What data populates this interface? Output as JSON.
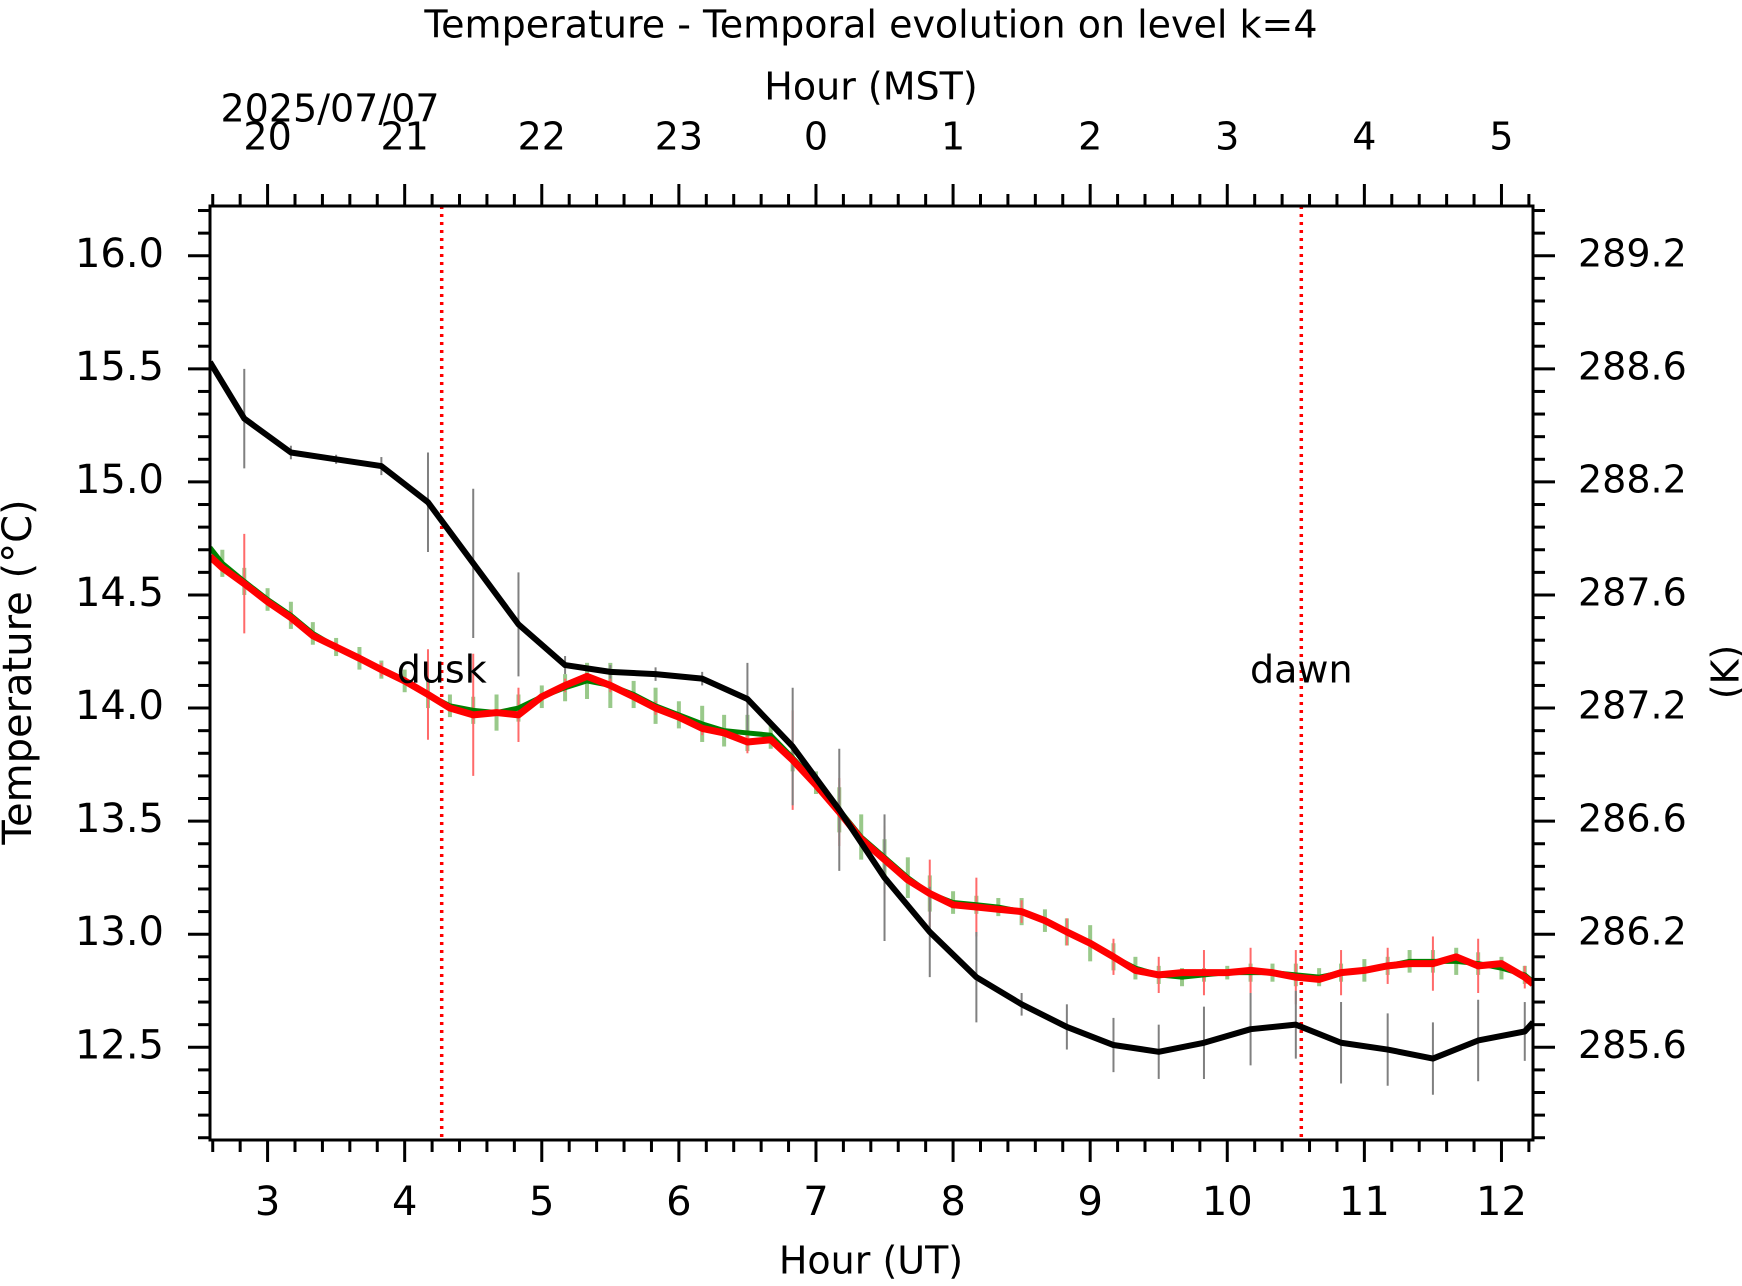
{
  "chart_data": {
    "type": "line",
    "title": "Temperature - Temporal evolution on level k=4",
    "xlabel": "Hour (UT)",
    "x2label": "Hour (MST)",
    "ylabel": "Temperature (°C)",
    "y2label": "(K)",
    "date_label": "2025/07/07",
    "xlim": [
      2.58,
      12.23
    ],
    "xticks": [
      3,
      4,
      5,
      6,
      7,
      8,
      9,
      10,
      11,
      12
    ],
    "xminorticks": [
      2.6,
      2.8,
      3.2,
      3.4,
      3.6,
      3.8,
      4.2,
      4.4,
      4.6,
      4.8,
      5.2,
      5.4,
      5.6,
      5.8,
      6.2,
      6.4,
      6.6,
      6.8,
      7.2,
      7.4,
      7.6,
      7.8,
      8.2,
      8.4,
      8.6,
      8.8,
      9.2,
      9.4,
      9.6,
      9.8,
      10.2,
      10.4,
      10.6,
      10.8,
      11.2,
      11.4,
      11.6,
      11.8,
      12.2
    ],
    "x2lim": [
      19.58,
      29.23
    ],
    "x2ticks": [
      20,
      21,
      22,
      23,
      {
        "value": 24,
        "label": "0"
      },
      {
        "value": 25,
        "label": "1"
      },
      {
        "value": 26,
        "label": "2"
      },
      {
        "value": 27,
        "label": "3"
      },
      {
        "value": 28,
        "label": "4"
      },
      {
        "value": 29,
        "label": "5"
      }
    ],
    "ylim": [
      12.09,
      16.22
    ],
    "yticks": [
      12.5,
      {
        "value": 13,
        "label": "13.0"
      },
      13.5,
      {
        "value": 14,
        "label": "14.0"
      },
      14.5,
      {
        "value": 15,
        "label": "15.0"
      },
      15.5,
      {
        "value": 16,
        "label": "16.0"
      }
    ],
    "yminorticks": [
      12.1,
      12.2,
      12.3,
      12.4,
      12.6,
      12.7,
      12.8,
      12.9,
      13.1,
      13.2,
      13.3,
      13.4,
      13.6,
      13.7,
      13.8,
      13.9,
      14.1,
      14.2,
      14.3,
      14.4,
      14.6,
      14.7,
      14.8,
      14.9,
      15.1,
      15.2,
      15.3,
      15.4,
      15.6,
      15.7,
      15.8,
      15.9,
      16.1,
      16.2
    ],
    "y2lim": [
      285.24,
      289.37
    ],
    "y2ticks": [
      {
        "value": 285.65,
        "label": "285.6"
      },
      {
        "value": 286.15,
        "label": "286.2"
      },
      {
        "value": 286.65,
        "label": "286.6"
      },
      {
        "value": 287.15,
        "label": "287.2"
      },
      {
        "value": 287.65,
        "label": "287.6"
      },
      {
        "value": 288.15,
        "label": "288.2"
      },
      {
        "value": 288.65,
        "label": "288.6"
      },
      {
        "value": 289.15,
        "label": "289.2"
      }
    ],
    "annotations": [
      {
        "text": "dusk",
        "x": 4.27,
        "y": 14.16
      },
      {
        "text": "dawn",
        "x": 10.54,
        "y": 14.16
      }
    ],
    "annotation_color": "#ff0000",
    "x": [
      2.58,
      2.67,
      2.83,
      3.0,
      3.17,
      3.33,
      3.5,
      3.67,
      3.83,
      4.0,
      4.17,
      4.33,
      4.5,
      4.67,
      4.83,
      5.0,
      5.17,
      5.33,
      5.5,
      5.67,
      5.83,
      6.0,
      6.17,
      6.33,
      6.5,
      6.67,
      6.83,
      7.0,
      7.17,
      7.33,
      7.5,
      7.67,
      7.83,
      8.0,
      8.17,
      8.33,
      8.5,
      8.67,
      8.83,
      9.0,
      9.17,
      9.33,
      9.5,
      9.67,
      9.83,
      10.0,
      10.17,
      10.33,
      10.5,
      10.67,
      10.83,
      11.0,
      11.17,
      11.33,
      11.5,
      11.67,
      11.83,
      12.0,
      12.17,
      12.23
    ],
    "series": [
      {
        "color": "#008000",
        "error_color": "#99c98a",
        "width": 5,
        "values": [
          14.71,
          14.64,
          14.56,
          14.48,
          14.41,
          14.33,
          14.27,
          14.22,
          14.17,
          14.12,
          14.06,
          14.01,
          13.99,
          13.98,
          14.0,
          14.05,
          14.09,
          14.12,
          14.1,
          14.06,
          14.01,
          13.97,
          13.93,
          13.9,
          13.89,
          13.88,
          13.78,
          13.67,
          13.55,
          13.43,
          13.34,
          13.25,
          13.18,
          13.14,
          13.13,
          13.12,
          13.1,
          13.06,
          13.01,
          12.96,
          12.9,
          12.85,
          12.82,
          12.81,
          12.82,
          12.83,
          12.83,
          12.83,
          12.82,
          12.81,
          12.83,
          12.84,
          12.86,
          12.88,
          12.88,
          12.88,
          12.87,
          12.85,
          12.82,
          12.79
        ],
        "errors": [
          null,
          0.06,
          0.06,
          0.05,
          0.06,
          0.05,
          0.04,
          0.05,
          0.04,
          0.05,
          0.06,
          0.05,
          0.06,
          0.08,
          0.06,
          0.05,
          0.06,
          0.08,
          0.1,
          0.06,
          0.08,
          0.06,
          0.08,
          0.07,
          0.08,
          0.06,
          0.06,
          0.05,
          0.1,
          0.1,
          0.08,
          0.09,
          0.08,
          0.05,
          0.04,
          0.04,
          0.06,
          0.05,
          0.06,
          0.08,
          0.06,
          0.05,
          0.04,
          0.04,
          0.03,
          0.03,
          0.04,
          0.04,
          0.05,
          0.04,
          0.04,
          0.05,
          0.04,
          0.05,
          0.05,
          0.06,
          0.05,
          0.05,
          0.04,
          null
        ]
      },
      {
        "color": "#ff0000",
        "error_color": "#ff6a6a",
        "width": 7,
        "values": [
          14.67,
          14.62,
          14.55,
          14.47,
          14.4,
          14.32,
          14.27,
          14.22,
          14.17,
          14.12,
          14.06,
          14.0,
          13.97,
          13.98,
          13.97,
          14.05,
          14.1,
          14.14,
          14.1,
          14.05,
          14.0,
          13.96,
          13.91,
          13.89,
          13.85,
          13.86,
          13.77,
          13.66,
          13.54,
          13.42,
          13.33,
          13.24,
          13.18,
          13.13,
          13.12,
          13.11,
          13.1,
          13.06,
          13.01,
          12.96,
          12.9,
          12.84,
          12.82,
          12.83,
          12.83,
          12.83,
          12.84,
          12.83,
          12.81,
          12.8,
          12.83,
          12.84,
          12.86,
          12.87,
          12.87,
          12.9,
          12.86,
          12.87,
          12.81,
          12.78
        ],
        "errors": [
          null,
          null,
          0.22,
          null,
          0.03,
          null,
          0.02,
          null,
          0.03,
          null,
          0.2,
          null,
          0.27,
          null,
          0.12,
          null,
          0.03,
          null,
          0.03,
          null,
          0.03,
          null,
          0.03,
          null,
          0.05,
          null,
          0.22,
          null,
          0.15,
          null,
          0.15,
          null,
          0.15,
          null,
          0.13,
          null,
          0.05,
          null,
          0.06,
          null,
          0.08,
          null,
          0.08,
          null,
          0.1,
          null,
          0.1,
          null,
          0.12,
          null,
          0.1,
          null,
          0.08,
          null,
          0.12,
          null,
          0.12,
          null,
          0.05,
          null
        ]
      },
      {
        "color": "#000000",
        "error_color": "#808080",
        "width": 6,
        "x": [
          2.58,
          2.83,
          3.17,
          3.5,
          3.83,
          4.17,
          4.5,
          4.83,
          5.17,
          5.5,
          5.83,
          6.17,
          6.5,
          6.83,
          7.17,
          7.5,
          7.83,
          8.17,
          8.5,
          8.83,
          9.17,
          9.5,
          9.83,
          10.17,
          10.5,
          10.83,
          11.17,
          11.5,
          11.83,
          12.17,
          12.23
        ],
        "values": [
          15.53,
          15.28,
          15.13,
          15.1,
          15.07,
          14.91,
          14.64,
          14.37,
          14.19,
          14.16,
          14.15,
          14.13,
          14.04,
          13.83,
          13.55,
          13.25,
          13.01,
          12.81,
          12.69,
          12.59,
          12.51,
          12.48,
          12.52,
          12.58,
          12.6,
          12.52,
          12.49,
          12.45,
          12.53,
          12.57,
          12.61
        ],
        "errors": [
          null,
          0.22,
          0.03,
          0.02,
          0.04,
          0.22,
          0.33,
          0.23,
          0.04,
          0.03,
          0.03,
          0.03,
          0.16,
          0.26,
          0.27,
          0.28,
          0.2,
          0.2,
          0.05,
          0.1,
          0.12,
          0.12,
          0.16,
          0.16,
          0.15,
          0.18,
          0.16,
          0.16,
          0.18,
          0.13,
          null
        ]
      }
    ]
  }
}
